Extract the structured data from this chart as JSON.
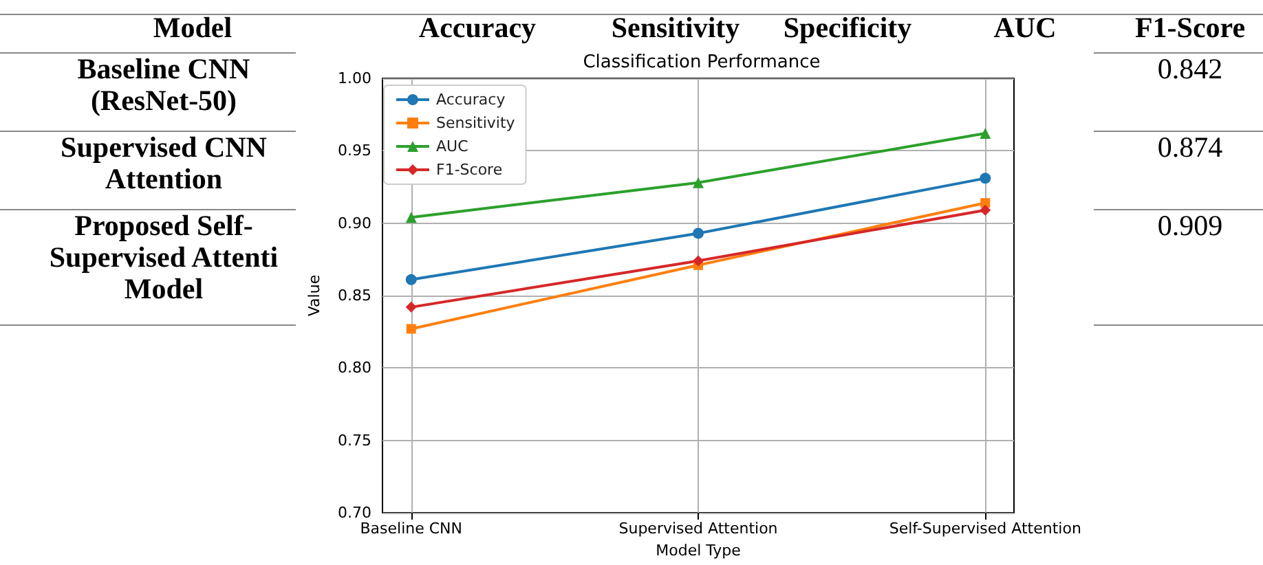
{
  "chart_data": {
    "type": "line",
    "title": "Classification Performance",
    "xlabel": "Model Type",
    "ylabel": "Value",
    "categories": [
      "Baseline CNN",
      "Supervised Attention",
      "Self-Supervised Attention"
    ],
    "series": [
      {
        "name": "Accuracy",
        "color": "#1f77b4",
        "marker": "circle",
        "values": [
          0.861,
          0.893,
          0.931
        ]
      },
      {
        "name": "Sensitivity",
        "color": "#ff7f0e",
        "marker": "square",
        "values": [
          0.827,
          0.871,
          0.914
        ]
      },
      {
        "name": "AUC",
        "color": "#2ca02c",
        "marker": "triangle",
        "values": [
          0.904,
          0.928,
          0.962
        ]
      },
      {
        "name": "F1-Score",
        "color": "#d62728",
        "marker": "diamond",
        "values": [
          0.842,
          0.874,
          0.909
        ]
      }
    ],
    "ylim": [
      0.7,
      1.0
    ],
    "yticks": [
      {
        "value": 0.7,
        "label": "0.70"
      },
      0.75,
      {
        "value": 0.8,
        "label": "0.80"
      },
      0.85,
      {
        "value": 0.9,
        "label": "0.90"
      },
      0.95,
      {
        "value": 1,
        "label": "1.00"
      }
    ],
    "grid": true,
    "legend": "top left",
    "annotations": [
      "Model",
      "Accuracy",
      "Sensitivity",
      "Specificity",
      "AUC",
      "F1-Score",
      "Baseline CNN (ResNet-50)",
      "0.842",
      "Supervised CNN Attention",
      "0.874",
      "Proposed Self-Supervised Attenti Model",
      "0.909"
    ]
  }
}
